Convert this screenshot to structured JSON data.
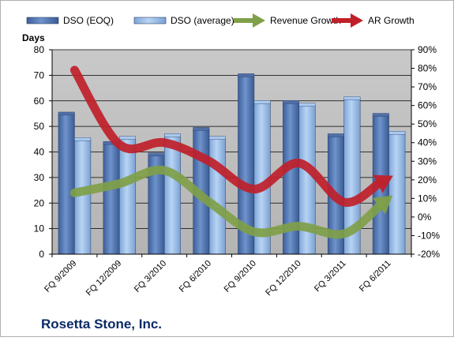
{
  "chart_data": {
    "type": "bar",
    "title": "Rosetta Stone, Inc.",
    "ylabel": "Days",
    "ylim": [
      0,
      80
    ],
    "yticks": [
      "0",
      "10",
      "20",
      "30",
      "40",
      "50",
      "60",
      "70",
      "80"
    ],
    "y2lim": [
      -20,
      90
    ],
    "y2ticks": [
      "-20%",
      "-10%",
      "0%",
      "10%",
      "20%",
      "30%",
      "40%",
      "50%",
      "60%",
      "70%",
      "80%",
      "90%"
    ],
    "categories": [
      "FQ 9/2009",
      "FQ 12/2009",
      "FQ 3/2010",
      "FQ 6/2010",
      "FQ 9/2010",
      "FQ 12/2010",
      "FQ 3/2011",
      "FQ 6/2011"
    ],
    "legend_position": "top",
    "grid": true,
    "series": [
      {
        "name": "DSO (EOQ)",
        "kind": "bar",
        "axis": "left",
        "color": "#5b7fb8",
        "values": [
          55,
          43.5,
          39,
          49,
          70,
          59.5,
          46.5,
          54.5
        ]
      },
      {
        "name": "DSO (average)",
        "kind": "bar",
        "axis": "left",
        "color": "#9dbfe8",
        "values": [
          45,
          45.5,
          46.5,
          45.5,
          59.5,
          58.5,
          61,
          47.5
        ]
      },
      {
        "name": "Revenue Growth",
        "kind": "line",
        "axis": "right",
        "color": "#7fa048",
        "values": [
          13,
          18,
          25,
          8,
          -8,
          -5,
          -9,
          10
        ]
      },
      {
        "name": "AR Growth",
        "kind": "line",
        "axis": "right",
        "color": "#c0202a",
        "values": [
          79,
          39,
          40,
          30,
          15,
          29,
          8,
          21
        ]
      }
    ]
  }
}
